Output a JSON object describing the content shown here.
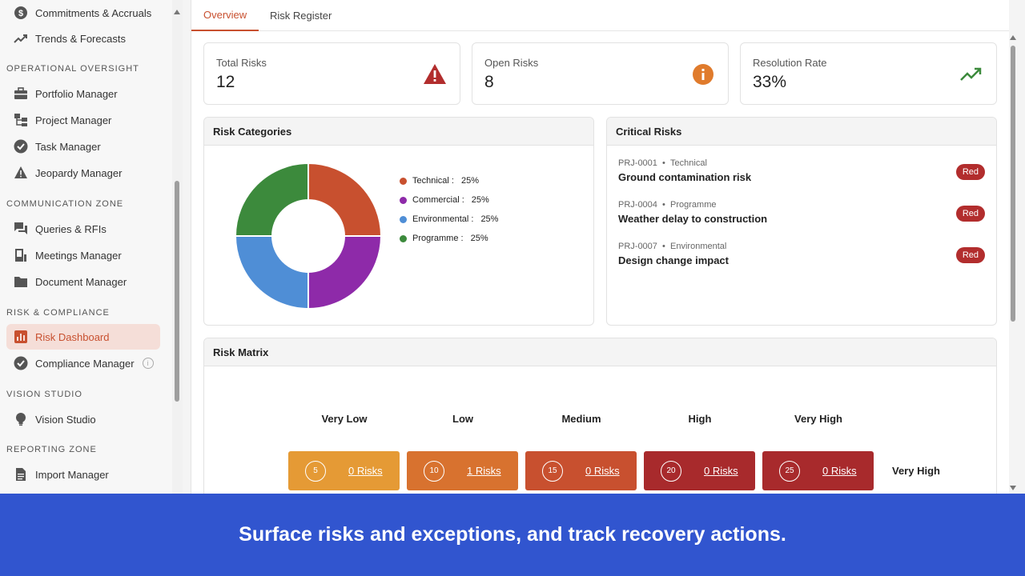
{
  "sidebar": {
    "items_top": [
      {
        "label": "Commitments & Accruals",
        "icon": "dollar-icon"
      },
      {
        "label": "Trends & Forecasts",
        "icon": "trend-icon"
      }
    ],
    "sections": [
      {
        "title": "OPERATIONAL OVERSIGHT",
        "items": [
          {
            "label": "Portfolio Manager",
            "icon": "briefcase-icon"
          },
          {
            "label": "Project Manager",
            "icon": "hierarchy-icon"
          },
          {
            "label": "Task Manager",
            "icon": "check-circle-icon"
          },
          {
            "label": "Jeopardy Manager",
            "icon": "warning-icon"
          }
        ]
      },
      {
        "title": "COMMUNICATION ZONE",
        "items": [
          {
            "label": "Queries & RFIs",
            "icon": "chat-icon"
          },
          {
            "label": "Meetings Manager",
            "icon": "meeting-icon"
          },
          {
            "label": "Document Manager",
            "icon": "folder-icon"
          }
        ]
      },
      {
        "title": "RISK & COMPLIANCE",
        "items": [
          {
            "label": "Risk Dashboard",
            "icon": "dashboard-icon",
            "active": true
          },
          {
            "label": "Compliance Manager",
            "icon": "check-circle-icon"
          }
        ]
      },
      {
        "title": "VISION STUDIO",
        "items": [
          {
            "label": "Vision Studio",
            "icon": "lightbulb-icon"
          }
        ]
      },
      {
        "title": "REPORTING ZONE",
        "items": [
          {
            "label": "Import Manager",
            "icon": "document-icon"
          }
        ]
      }
    ]
  },
  "tabs": [
    "Overview",
    "Risk Register"
  ],
  "kpis": [
    {
      "label": "Total Risks",
      "value": "12",
      "icon": "warning-icon",
      "color": "#b22d2d"
    },
    {
      "label": "Open Risks",
      "value": "8",
      "icon": "info-icon",
      "color": "#e07b2c"
    },
    {
      "label": "Resolution Rate",
      "value": "33%",
      "icon": "trend-up-icon",
      "color": "#3c8a3c"
    }
  ],
  "risk_categories": {
    "title": "Risk Categories",
    "legend": [
      {
        "label": "Technical :",
        "pct": "25%"
      },
      {
        "label": "Commercial :",
        "pct": "25%"
      },
      {
        "label": "Environmental :",
        "pct": "25%"
      },
      {
        "label": "Programme :",
        "pct": "25%"
      }
    ]
  },
  "chart_data": {
    "type": "pie",
    "categories": [
      "Technical",
      "Commercial",
      "Environmental",
      "Programme"
    ],
    "values": [
      25,
      25,
      25,
      25
    ],
    "colors": [
      "#c8502f",
      "#8e2aa9",
      "#4f8ed6",
      "#3c8a3c"
    ]
  },
  "critical_risks": {
    "title": "Critical Risks",
    "items": [
      {
        "id": "PRJ-0001",
        "sep": "•",
        "category": "Technical",
        "title": "Ground contamination risk",
        "status": "Red"
      },
      {
        "id": "PRJ-0004",
        "sep": "•",
        "category": "Programme",
        "title": "Weather delay to construction",
        "status": "Red"
      },
      {
        "id": "PRJ-0007",
        "sep": "•",
        "category": "Environmental",
        "title": "Design change impact",
        "status": "Red"
      }
    ]
  },
  "risk_matrix": {
    "title": "Risk Matrix",
    "columns": [
      "Very Low",
      "Low",
      "Medium",
      "High",
      "Very High"
    ],
    "row_label": "Very High",
    "cells": [
      {
        "score": "5",
        "risks": "0 Risks",
        "color": "#e59a35"
      },
      {
        "score": "10",
        "risks": "1 Risks",
        "color": "#d8722f"
      },
      {
        "score": "15",
        "risks": "0 Risks",
        "color": "#c8502f"
      },
      {
        "score": "20",
        "risks": "0 Risks",
        "color": "#a82a2c"
      },
      {
        "score": "25",
        "risks": "0 Risks",
        "color": "#a82a2c"
      }
    ]
  },
  "banner": {
    "text": "Surface risks and exceptions, and track recovery actions."
  }
}
